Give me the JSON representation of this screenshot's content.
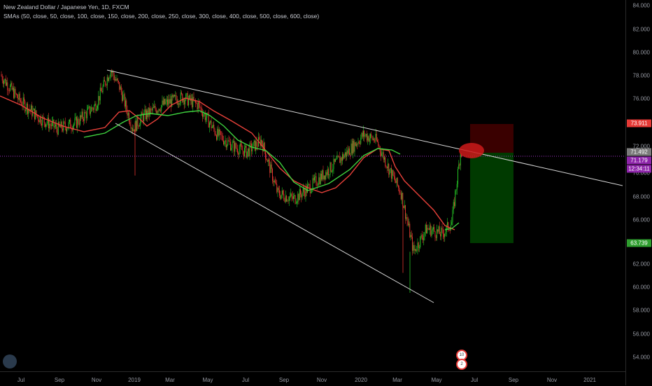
{
  "header": {
    "title": "New Zealand Dollar / Japanese Yen, 1D, FXCM",
    "indicator": "SMAs (50, close, 50, close, 100, close, 150, close, 200, close, 250, close, 300, close, 400, close, 500, close, 600, close)"
  },
  "colors": {
    "background": "#000000",
    "up": "#26c526",
    "down": "#e0332f",
    "sma_fast": "#e8413a",
    "sma_slow": "#3ed23e",
    "trendline": "#d8d8d8",
    "crosshair": "#a233c8",
    "stop_zone": "#3a0000",
    "target_zone": "#003a00"
  },
  "price_axis": {
    "ticks": [
      "84.000",
      "82.000",
      "80.000",
      "78.000",
      "76.000",
      "74.000",
      "72.000",
      "70.000",
      "68.000",
      "66.000",
      "64.000",
      "62.000",
      "60.000",
      "58.000",
      "56.000",
      "54.000"
    ],
    "labels": {
      "stop": {
        "text": "73.911",
        "color": "#e53935"
      },
      "last": {
        "text": "71.492",
        "color": "#7a7a7a"
      },
      "crosshair": {
        "text": "71.179",
        "color": "#8e24aa"
      },
      "countdown": {
        "text": "12:34:11",
        "color": "#8e24aa"
      },
      "target": {
        "text": "63.739",
        "color": "#2e9d2e"
      }
    }
  },
  "time_axis": {
    "ticks": [
      "Jul",
      "Sep",
      "Nov",
      "2019",
      "Mar",
      "May",
      "Jul",
      "Sep",
      "Nov",
      "2020",
      "Mar",
      "May",
      "Jul",
      "Sep",
      "Nov",
      "2021"
    ]
  },
  "markers": [
    "10",
    "2"
  ],
  "chart_data": {
    "type": "candlestick",
    "title": "New Zealand Dollar / Japanese Yen, 1D, FXCM",
    "ylim": [
      53,
      85
    ],
    "x_range": [
      "2018-06",
      "2021-03"
    ],
    "approx_close_path": [
      [
        "2018-06-10",
        77.5
      ],
      [
        "2018-07-01",
        76.0
      ],
      [
        "2018-08-01",
        74.5
      ],
      [
        "2018-09-01",
        73.5
      ],
      [
        "2018-10-01",
        74.0
      ],
      [
        "2018-11-01",
        75.5
      ],
      [
        "2018-11-25",
        78.5
      ],
      [
        "2018-12-10",
        77.0
      ],
      [
        "2018-12-31",
        73.5
      ],
      [
        "2019-01-15",
        74.5
      ],
      [
        "2019-02-15",
        75.5
      ],
      [
        "2019-03-20",
        76.2
      ],
      [
        "2019-04-15",
        75.5
      ],
      [
        "2019-05-15",
        73.0
      ],
      [
        "2019-06-10",
        72.0
      ],
      [
        "2019-07-01",
        71.5
      ],
      [
        "2019-07-25",
        72.5
      ],
      [
        "2019-08-20",
        68.0
      ],
      [
        "2019-09-15",
        67.5
      ],
      [
        "2019-10-10",
        68.5
      ],
      [
        "2019-11-10",
        70.0
      ],
      [
        "2019-12-10",
        71.5
      ],
      [
        "2020-01-05",
        73.0
      ],
      [
        "2020-01-25",
        72.5
      ],
      [
        "2020-02-15",
        70.0
      ],
      [
        "2020-03-05",
        68.0
      ],
      [
        "2020-03-25",
        63.0
      ],
      [
        "2020-04-15",
        65.0
      ],
      [
        "2020-05-10",
        64.5
      ],
      [
        "2020-05-25",
        65.5
      ],
      [
        "2020-06-08",
        71.5
      ]
    ],
    "trade": {
      "entry": 71.5,
      "stop": 73.911,
      "target": 63.739
    }
  }
}
